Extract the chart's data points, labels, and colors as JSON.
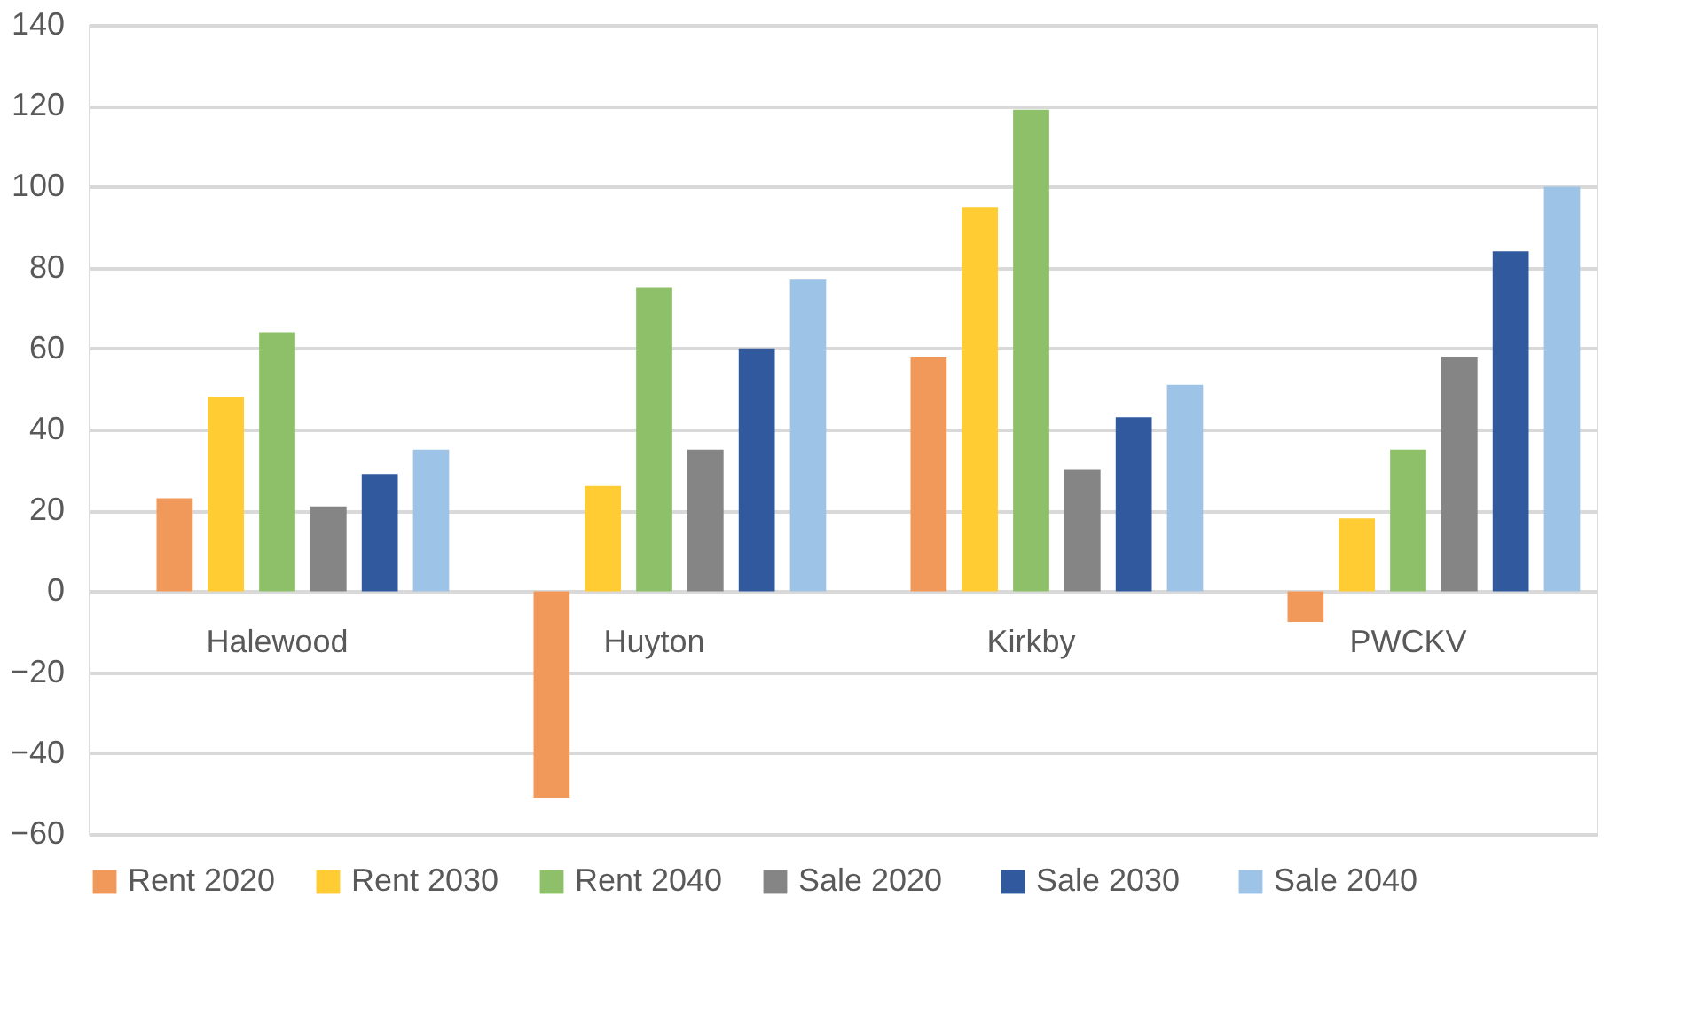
{
  "chart_data": {
    "type": "bar",
    "categories": [
      "Halewood",
      "Huyton",
      "Kirkby",
      "PWCKV"
    ],
    "series": [
      {
        "name": "Rent 2020",
        "color": "#f1995a",
        "values": [
          23,
          -51,
          58,
          -7.6
        ]
      },
      {
        "name": "Rent 2030",
        "color": "#ffcc33",
        "values": [
          48,
          26,
          95,
          18
        ]
      },
      {
        "name": "Rent 2040",
        "color": "#8dc068",
        "values": [
          64,
          75,
          119,
          35
        ]
      },
      {
        "name": "Sale   2020",
        "color": "#858585",
        "values": [
          21,
          35,
          30,
          58
        ]
      },
      {
        "name": "Sale   2030",
        "color": "#31599e",
        "values": [
          29,
          60,
          43,
          84
        ]
      },
      {
        "name": "Sale   2040",
        "color": "#9dc3e6",
        "values": [
          35,
          77,
          51,
          100
        ]
      }
    ],
    "ylim": [
      -60,
      140
    ],
    "yticks": [
      -60,
      -40,
      -20,
      0,
      20,
      40,
      60,
      80,
      100,
      120,
      140
    ],
    "grid": "y",
    "legend": "bottom"
  }
}
